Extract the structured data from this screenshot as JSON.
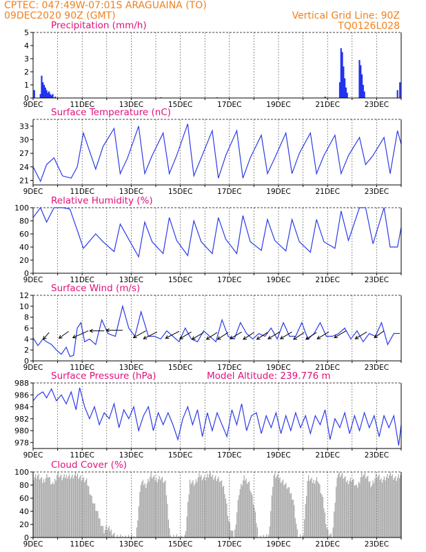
{
  "header": {
    "org_coords": "CPTEC:   047:49W-07:01S   ARAGUAINA (TO)",
    "datetime": "09DEC2020 90Z (GMT)",
    "grid_note": "Vertical Grid Line: 90Z",
    "code": "TQ0126L028"
  },
  "colors": {
    "line": "#2a3ae8",
    "bar": "#2233ee",
    "cloud": "#a6a6a6",
    "title": "#e0107a",
    "header": "#f08020"
  },
  "chart_data": [
    {
      "type": "bar",
      "title": "Precipitation (mm/h)",
      "ylim": [
        0,
        5
      ],
      "yticks": [
        0,
        1,
        2,
        3,
        4,
        5
      ],
      "xlim": [
        9,
        24
      ],
      "xticks": [
        "9DEC",
        "11DEC",
        "13DEC",
        "15DEC",
        "17DEC",
        "19DEC",
        "21DEC",
        "23DEC"
      ],
      "x": [
        9.05,
        9.3,
        9.35,
        9.4,
        9.45,
        9.5,
        9.55,
        9.6,
        9.65,
        9.7,
        9.75,
        9.8,
        9.9,
        14.2,
        16.5,
        20.9,
        21.5,
        21.55,
        21.6,
        21.65,
        21.7,
        21.75,
        21.8,
        22.3,
        22.35,
        22.4,
        22.45,
        22.5,
        23.85,
        23.95
      ],
      "values": [
        0.6,
        0.3,
        1.7,
        1.2,
        1.0,
        0.8,
        0.6,
        0.4,
        0.5,
        0.3,
        0.2,
        0.3,
        0.1,
        0.05,
        0.05,
        0.1,
        1.2,
        3.8,
        3.5,
        2.4,
        1.5,
        0.8,
        0.4,
        2.9,
        2.5,
        1.8,
        1.0,
        0.5,
        0.6,
        1.2
      ]
    },
    {
      "type": "line",
      "title": "Surface Temperature (nC)",
      "ylim": [
        20,
        34.5
      ],
      "yticks": [
        21,
        24,
        27,
        30,
        33
      ],
      "xlim": [
        9,
        24
      ],
      "xticks": [
        "9DEC",
        "11DEC",
        "13DEC",
        "15DEC",
        "17DEC",
        "19DEC",
        "21DEC",
        "23DEC"
      ],
      "x": [
        9,
        9.3,
        9.55,
        9.85,
        10.2,
        10.55,
        10.8,
        11.05,
        11.55,
        11.85,
        12.3,
        12.55,
        12.85,
        13.3,
        13.55,
        13.85,
        14.3,
        14.55,
        14.85,
        15.3,
        15.55,
        15.85,
        16.3,
        16.55,
        16.85,
        17.3,
        17.55,
        17.85,
        18.3,
        18.55,
        18.85,
        19.3,
        19.55,
        19.85,
        20.3,
        20.55,
        20.85,
        21.3,
        21.55,
        21.85,
        22.3,
        22.55,
        22.85,
        23.3,
        23.55,
        23.85,
        24
      ],
      "values": [
        24,
        20.8,
        24.5,
        26,
        22,
        21.5,
        24,
        31.5,
        23.5,
        28.5,
        32.5,
        22.5,
        26,
        33,
        22.5,
        26.5,
        31.5,
        22.5,
        26.5,
        33.5,
        22,
        26,
        32,
        21.5,
        26.5,
        32,
        21.5,
        26,
        31,
        22.5,
        26,
        31.5,
        22.5,
        27,
        31.5,
        22.5,
        26.5,
        31,
        22.5,
        26.5,
        30.5,
        24.5,
        26.5,
        30.5,
        22.5,
        32,
        29
      ]
    },
    {
      "type": "line",
      "title": "Relative Humidity (%)",
      "ylim": [
        0,
        100
      ],
      "yticks": [
        0,
        20,
        40,
        60,
        80,
        100
      ],
      "xlim": [
        9,
        24
      ],
      "xticks": [
        "9DEC",
        "11DEC",
        "13DEC",
        "15DEC",
        "17DEC",
        "19DEC",
        "21DEC",
        "23DEC"
      ],
      "x": [
        9,
        9.3,
        9.55,
        9.85,
        10.2,
        10.5,
        10.85,
        11.05,
        11.55,
        11.85,
        12.3,
        12.55,
        12.85,
        13.3,
        13.55,
        13.85,
        14.3,
        14.55,
        14.85,
        15.3,
        15.55,
        15.85,
        16.3,
        16.55,
        16.85,
        17.3,
        17.55,
        17.85,
        18.3,
        18.55,
        18.85,
        19.3,
        19.55,
        19.85,
        20.3,
        20.55,
        20.85,
        21.3,
        21.55,
        21.85,
        22.3,
        22.55,
        22.85,
        23.3,
        23.55,
        23.85,
        24
      ],
      "values": [
        85,
        100,
        78,
        100,
        100,
        98,
        60,
        38,
        60,
        48,
        33,
        75,
        55,
        25,
        78,
        48,
        30,
        85,
        50,
        27,
        80,
        48,
        30,
        85,
        52,
        30,
        88,
        48,
        35,
        82,
        50,
        34,
        82,
        48,
        32,
        82,
        48,
        38,
        95,
        50,
        100,
        100,
        45,
        100,
        40,
        40,
        70
      ]
    },
    {
      "type": "line",
      "title": "Surface Wind (m/s)",
      "ylim": [
        0,
        12
      ],
      "yticks": [
        0,
        2,
        4,
        6,
        8,
        10,
        12
      ],
      "xlim": [
        9,
        24
      ],
      "xticks": [
        "9DEC",
        "11DEC",
        "13DEC",
        "15DEC",
        "17DEC",
        "19DEC",
        "21DEC",
        "23DEC"
      ],
      "x": [
        9,
        9.2,
        9.4,
        9.55,
        9.75,
        9.95,
        10.15,
        10.35,
        10.5,
        10.65,
        10.8,
        10.95,
        11.1,
        11.3,
        11.55,
        11.8,
        12.05,
        12.35,
        12.65,
        12.9,
        13.15,
        13.4,
        13.7,
        13.95,
        14.2,
        14.45,
        14.7,
        14.95,
        15.2,
        15.45,
        15.7,
        15.95,
        16.2,
        16.45,
        16.7,
        16.95,
        17.2,
        17.45,
        17.7,
        17.95,
        18.2,
        18.45,
        18.7,
        18.95,
        19.2,
        19.45,
        19.7,
        19.95,
        20.2,
        20.45,
        20.7,
        20.95,
        21.2,
        21.45,
        21.7,
        21.95,
        22.2,
        22.45,
        22.7,
        22.95,
        23.2,
        23.45,
        23.7,
        23.95
      ],
      "values": [
        4.2,
        2.8,
        4,
        3.5,
        3,
        2,
        1.2,
        2.5,
        0.8,
        1,
        6,
        7,
        3.5,
        4,
        3,
        7.5,
        5,
        4.5,
        10,
        6,
        4.5,
        9,
        4.5,
        4.5,
        4,
        5.5,
        4.5,
        3.5,
        6,
        4,
        3.5,
        5.5,
        4.5,
        3.5,
        7.5,
        4.5,
        4,
        7,
        5,
        4,
        5,
        4.5,
        6,
        4,
        7,
        4.5,
        4.5,
        7,
        4,
        5,
        7,
        4.5,
        4.5,
        5,
        6,
        4,
        5.5,
        3.5,
        5,
        4.5,
        7,
        3,
        5,
        5
      ]
    },
    {
      "type": "line",
      "title": "Surface Pressure (hPa)",
      "annotation": "Model Altitude: 239.776 m",
      "ylim": [
        977,
        988
      ],
      "yticks": [
        978,
        980,
        982,
        984,
        986,
        988
      ],
      "xlim": [
        9,
        24
      ],
      "xticks": [
        "9DEC",
        "11DEC",
        "13DEC",
        "15DEC",
        "17DEC",
        "19DEC",
        "21DEC",
        "23DEC"
      ],
      "x": [
        9,
        9.2,
        9.4,
        9.55,
        9.75,
        9.95,
        10.15,
        10.35,
        10.55,
        10.75,
        10.9,
        11.1,
        11.3,
        11.5,
        11.7,
        11.9,
        12.1,
        12.3,
        12.5,
        12.7,
        12.9,
        13.1,
        13.3,
        13.5,
        13.7,
        13.9,
        14.1,
        14.3,
        14.5,
        14.7,
        14.9,
        15.1,
        15.3,
        15.5,
        15.7,
        15.9,
        16.1,
        16.3,
        16.5,
        16.7,
        16.9,
        17.1,
        17.3,
        17.5,
        17.7,
        17.9,
        18.1,
        18.3,
        18.5,
        18.7,
        18.9,
        19.1,
        19.3,
        19.5,
        19.7,
        19.9,
        20.1,
        20.3,
        20.5,
        20.7,
        20.9,
        21.1,
        21.3,
        21.5,
        21.7,
        21.9,
        22.1,
        22.3,
        22.5,
        22.7,
        22.9,
        23.1,
        23.3,
        23.5,
        23.7,
        23.9,
        24
      ],
      "values": [
        985,
        986,
        986.5,
        985.5,
        987,
        985,
        986,
        984.5,
        986.5,
        983.5,
        987.2,
        984,
        982,
        984,
        981,
        983,
        982,
        984.5,
        980.5,
        983.5,
        982,
        984,
        980,
        982.5,
        984,
        980,
        983,
        981,
        983,
        981,
        978.5,
        982,
        984,
        981,
        983.5,
        979,
        983,
        980,
        983,
        981,
        979,
        983.5,
        981,
        984.5,
        980,
        982.5,
        983,
        979.5,
        982.5,
        980.5,
        983,
        979.5,
        982.5,
        980,
        983,
        980.5,
        982.5,
        979.5,
        982.5,
        981,
        983.5,
        978.5,
        982,
        980.5,
        983,
        979.5,
        982.5,
        980,
        983,
        980.5,
        982.5,
        979,
        982.5,
        980.5,
        982.5,
        977.5,
        981
      ]
    },
    {
      "type": "area",
      "title": "Cloud Cover (%)",
      "ylim": [
        0,
        100
      ],
      "yticks": [
        0,
        20,
        40,
        60,
        80,
        100
      ],
      "xlim": [
        9,
        24
      ],
      "xticks": [
        "9DEC",
        "11DEC",
        "13DEC",
        "15DEC",
        "17DEC",
        "19DEC",
        "21DEC",
        "23DEC"
      ],
      "x": [
        9,
        9.2,
        9.4,
        9.6,
        9.8,
        10,
        10.2,
        10.4,
        10.6,
        10.8,
        11,
        11.2,
        11.4,
        11.6,
        11.8,
        11.9,
        12,
        12.2,
        12.4,
        12.6,
        12.8,
        13,
        13.2,
        13.4,
        13.6,
        13.8,
        14,
        14.2,
        14.4,
        14.6,
        14.8,
        15,
        15.2,
        15.4,
        15.6,
        15.8,
        16,
        16.2,
        16.4,
        16.6,
        16.8,
        17,
        17.2,
        17.4,
        17.6,
        17.8,
        18,
        18.2,
        18.4,
        18.6,
        18.8,
        19,
        19.2,
        19.4,
        19.6,
        19.8,
        20,
        20.2,
        20.4,
        20.6,
        20.8,
        21,
        21.2,
        21.4,
        21.6,
        21.8,
        22,
        22.2,
        22.4,
        22.6,
        22.8,
        23,
        23.2,
        23.4,
        23.6,
        23.8,
        24
      ],
      "values": [
        92,
        95,
        85,
        96,
        78,
        98,
        90,
        95,
        92,
        96,
        90,
        85,
        60,
        40,
        20,
        10,
        15,
        10,
        0,
        0,
        0,
        0,
        0,
        85,
        80,
        95,
        88,
        92,
        82,
        0,
        0,
        0,
        0,
        88,
        82,
        95,
        90,
        96,
        92,
        88,
        75,
        20,
        0,
        70,
        90,
        85,
        50,
        0,
        0,
        0,
        95,
        92,
        85,
        75,
        60,
        0,
        0,
        92,
        85,
        90,
        60,
        10,
        0,
        98,
        95,
        85,
        90,
        75,
        98,
        92,
        80,
        95,
        88,
        92,
        96,
        90,
        95
      ]
    }
  ]
}
